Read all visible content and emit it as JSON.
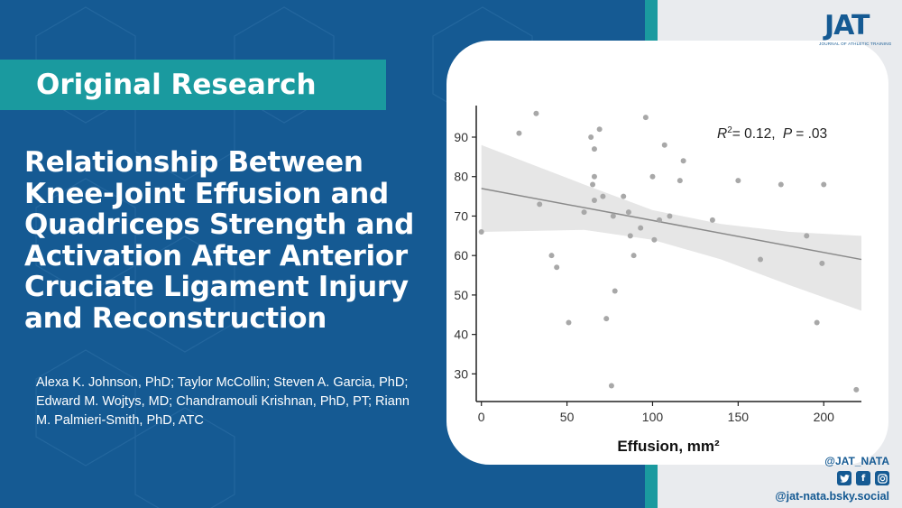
{
  "banner": {
    "label": "Original Research"
  },
  "article": {
    "title": "Relationship Between Knee-Joint Effusion and Quadriceps Strength and Activation After Anterior Cruciate Ligament Injury and Reconstruction",
    "authors": "Alexa K. Johnson, PhD; Taylor McCollin; Steven A. Garcia, PhD; Edward M. Wojtys, MD; Chandramouli Krishnan, PhD, PT; Riann M. Palmieri-Smith, PhD, ATC"
  },
  "logo": {
    "letters": "JAT",
    "subtitle": "JOURNAL OF ATHLETIC TRAINING"
  },
  "social": {
    "handle": "@JAT_NATA",
    "bluesky": "@jat-nata.bsky.social",
    "icons": [
      "twitter-icon",
      "facebook-icon",
      "instagram-icon"
    ]
  },
  "colors": {
    "navy": "#155a93",
    "teal": "#1a9a9f",
    "panel": "#e9ebee"
  },
  "chart_data": {
    "type": "scatter",
    "xlabel": "Effusion, mm²",
    "annotation": {
      "r2": "= 0.12,",
      "p": "= .03"
    },
    "xlim": [
      -3,
      222
    ],
    "ylim": [
      23,
      98
    ],
    "xticks": [
      0,
      50,
      100,
      150,
      200
    ],
    "yticks": [
      30,
      40,
      50,
      60,
      70,
      80,
      90
    ],
    "grid": false,
    "points": [
      [
        0,
        66
      ],
      [
        22,
        91
      ],
      [
        32,
        96
      ],
      [
        34,
        73
      ],
      [
        41,
        60
      ],
      [
        44,
        57
      ],
      [
        51,
        43
      ],
      [
        60,
        71
      ],
      [
        64,
        90
      ],
      [
        65,
        78
      ],
      [
        66,
        87
      ],
      [
        66,
        80
      ],
      [
        66,
        74
      ],
      [
        69,
        92
      ],
      [
        71,
        75
      ],
      [
        73,
        44
      ],
      [
        76,
        27
      ],
      [
        77,
        70
      ],
      [
        78,
        51
      ],
      [
        83,
        75
      ],
      [
        86,
        71
      ],
      [
        87,
        65
      ],
      [
        89,
        60
      ],
      [
        93,
        67
      ],
      [
        96,
        95
      ],
      [
        100,
        80
      ],
      [
        101,
        64
      ],
      [
        104,
        69
      ],
      [
        107,
        88
      ],
      [
        110,
        70
      ],
      [
        116,
        79
      ],
      [
        118,
        84
      ],
      [
        135,
        69
      ],
      [
        150,
        79
      ],
      [
        163,
        59
      ],
      [
        175,
        78
      ],
      [
        190,
        65
      ],
      [
        196,
        43
      ],
      [
        199,
        58
      ],
      [
        200,
        78
      ],
      [
        219,
        26
      ]
    ],
    "trend": {
      "x0": 0,
      "y0": 77,
      "x1": 222,
      "y1": 59
    },
    "band": {
      "upper": [
        [
          0,
          88
        ],
        [
          60,
          78
        ],
        [
          100,
          71.5
        ],
        [
          140,
          68
        ],
        [
          180,
          66
        ],
        [
          222,
          65
        ]
      ],
      "lower": [
        [
          0,
          66
        ],
        [
          60,
          66.5
        ],
        [
          100,
          64
        ],
        [
          140,
          59
        ],
        [
          180,
          52.5
        ],
        [
          222,
          46
        ]
      ]
    }
  }
}
